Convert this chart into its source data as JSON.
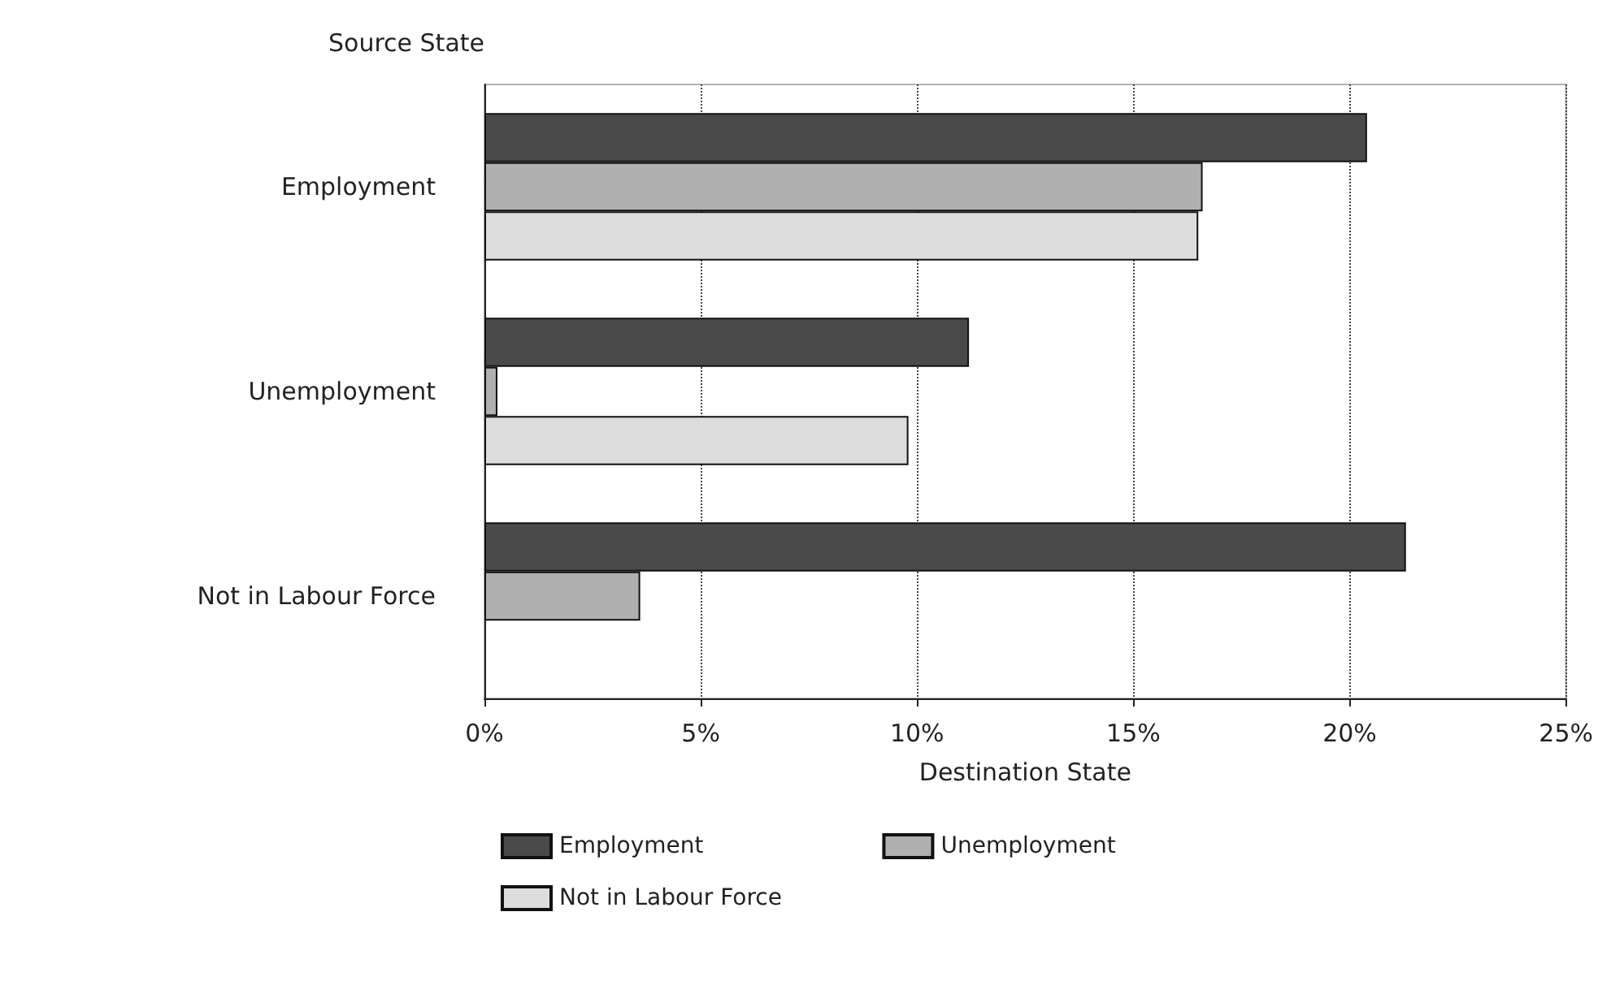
{
  "chart_data": {
    "type": "bar",
    "orientation": "horizontal",
    "ylabel": "Source State",
    "xlabel": "Destination State",
    "categories": [
      "Employment",
      "Unemployment",
      "Not in Labour Force"
    ],
    "series": [
      {
        "name": "Employment",
        "color": "#4a4a4a",
        "values": [
          20.4,
          11.2,
          21.3
        ]
      },
      {
        "name": "Unemployment",
        "color": "#b0b0b0",
        "values": [
          16.6,
          0.3,
          3.6
        ]
      },
      {
        "name": "Not in Labour Force",
        "color": "#dddddd",
        "values": [
          16.5,
          9.8,
          null
        ]
      }
    ],
    "xlim": [
      0,
      25
    ],
    "xticks": [
      {
        "value": 0,
        "label": "0%"
      },
      {
        "value": 5,
        "label": "5%"
      },
      {
        "value": 10,
        "label": "10%"
      },
      {
        "value": 15,
        "label": "15%"
      },
      {
        "value": 20,
        "label": "20%"
      },
      {
        "value": 25,
        "label": "25%"
      }
    ],
    "grid": "x",
    "legend": "bottom"
  }
}
